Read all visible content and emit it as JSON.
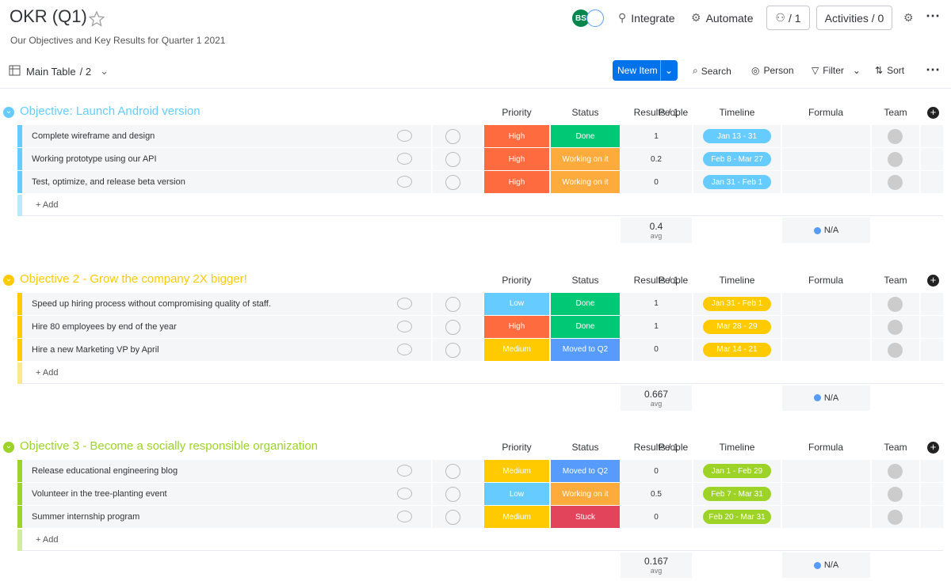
{
  "header": {
    "title": "OKR (Q1)",
    "subtitle": "Our Objectives and Key Results for Quarter 1 2021",
    "avatar": "BS",
    "integrate": "Integrate",
    "automate": "Automate",
    "members": "/ 1",
    "activities": "Activities / 0"
  },
  "toolbar": {
    "view": "Main Table",
    "view_count": "/ 2",
    "new_item": "New Item",
    "search": "Search",
    "person": "Person",
    "filter": "Filter",
    "sort": "Sort"
  },
  "columns": [
    "People",
    "Priority",
    "Status",
    "Results / 1",
    "Timeline",
    "Formula",
    "Team"
  ],
  "add_label": "+ Add",
  "summary_label": "avg",
  "formula_summary": "N/A",
  "groups": [
    {
      "title": "Objective: Launch Android version",
      "color": "#66ccff",
      "rows": [
        {
          "name": "Complete wireframe and design",
          "priority": "High",
          "priority_color": "#fd6b3f",
          "status": "Done",
          "status_color": "#00c875",
          "results": 1,
          "timeline": "Jan 13 - 31"
        },
        {
          "name": "Working prototype using our API",
          "priority": "High",
          "priority_color": "#fd6b3f",
          "status": "Working on it",
          "status_color": "#fdab3d",
          "results": 0.2,
          "timeline": "Feb 8 - Mar 27"
        },
        {
          "name": "Test, optimize, and release beta version",
          "priority": "High",
          "priority_color": "#fd6b3f",
          "status": "Working on it",
          "status_color": "#fdab3d",
          "results": 0,
          "timeline": "Jan 31 - Feb 1"
        }
      ],
      "summary": 0.4
    },
    {
      "title": "Objective 2 - Grow the company 2X bigger!",
      "color": "#ffcb00",
      "rows": [
        {
          "name": "Speed up hiring process without compromising quality of staff.",
          "priority": "Low",
          "priority_color": "#66ccff",
          "status": "Done",
          "status_color": "#00c875",
          "results": 1,
          "timeline": "Jan 31 - Feb 1"
        },
        {
          "name": "Hire 80 employees by end of the year",
          "priority": "High",
          "priority_color": "#fd6b3f",
          "status": "Done",
          "status_color": "#00c875",
          "results": 1,
          "timeline": "Mar 28 - 29"
        },
        {
          "name": "Hire a new Marketing VP by April",
          "priority": "Medium",
          "priority_color": "#ffcb00",
          "status": "Moved to Q2",
          "status_color": "#579bfc",
          "results": 0,
          "timeline": "Mar 14 - 21"
        }
      ],
      "summary": 0.667
    },
    {
      "title": "Objective 3 - Become a socially responsible organization",
      "color": "#9cd326",
      "rows": [
        {
          "name": "Release educational engineering blog",
          "priority": "Medium",
          "priority_color": "#ffcb00",
          "status": "Moved to Q2",
          "status_color": "#579bfc",
          "results": 0,
          "timeline": "Jan 1 - Feb 29"
        },
        {
          "name": "Volunteer in the tree-planting event",
          "priority": "Low",
          "priority_color": "#66ccff",
          "status": "Working on it",
          "status_color": "#fdab3d",
          "results": 0.5,
          "timeline": "Feb 7 - Mar 31"
        },
        {
          "name": "Summer internship program",
          "priority": "Medium",
          "priority_color": "#ffcb00",
          "status": "Stuck",
          "status_color": "#e2445c",
          "results": 0,
          "timeline": "Feb 20 - Mar 31"
        }
      ],
      "summary": 0.167
    }
  ]
}
